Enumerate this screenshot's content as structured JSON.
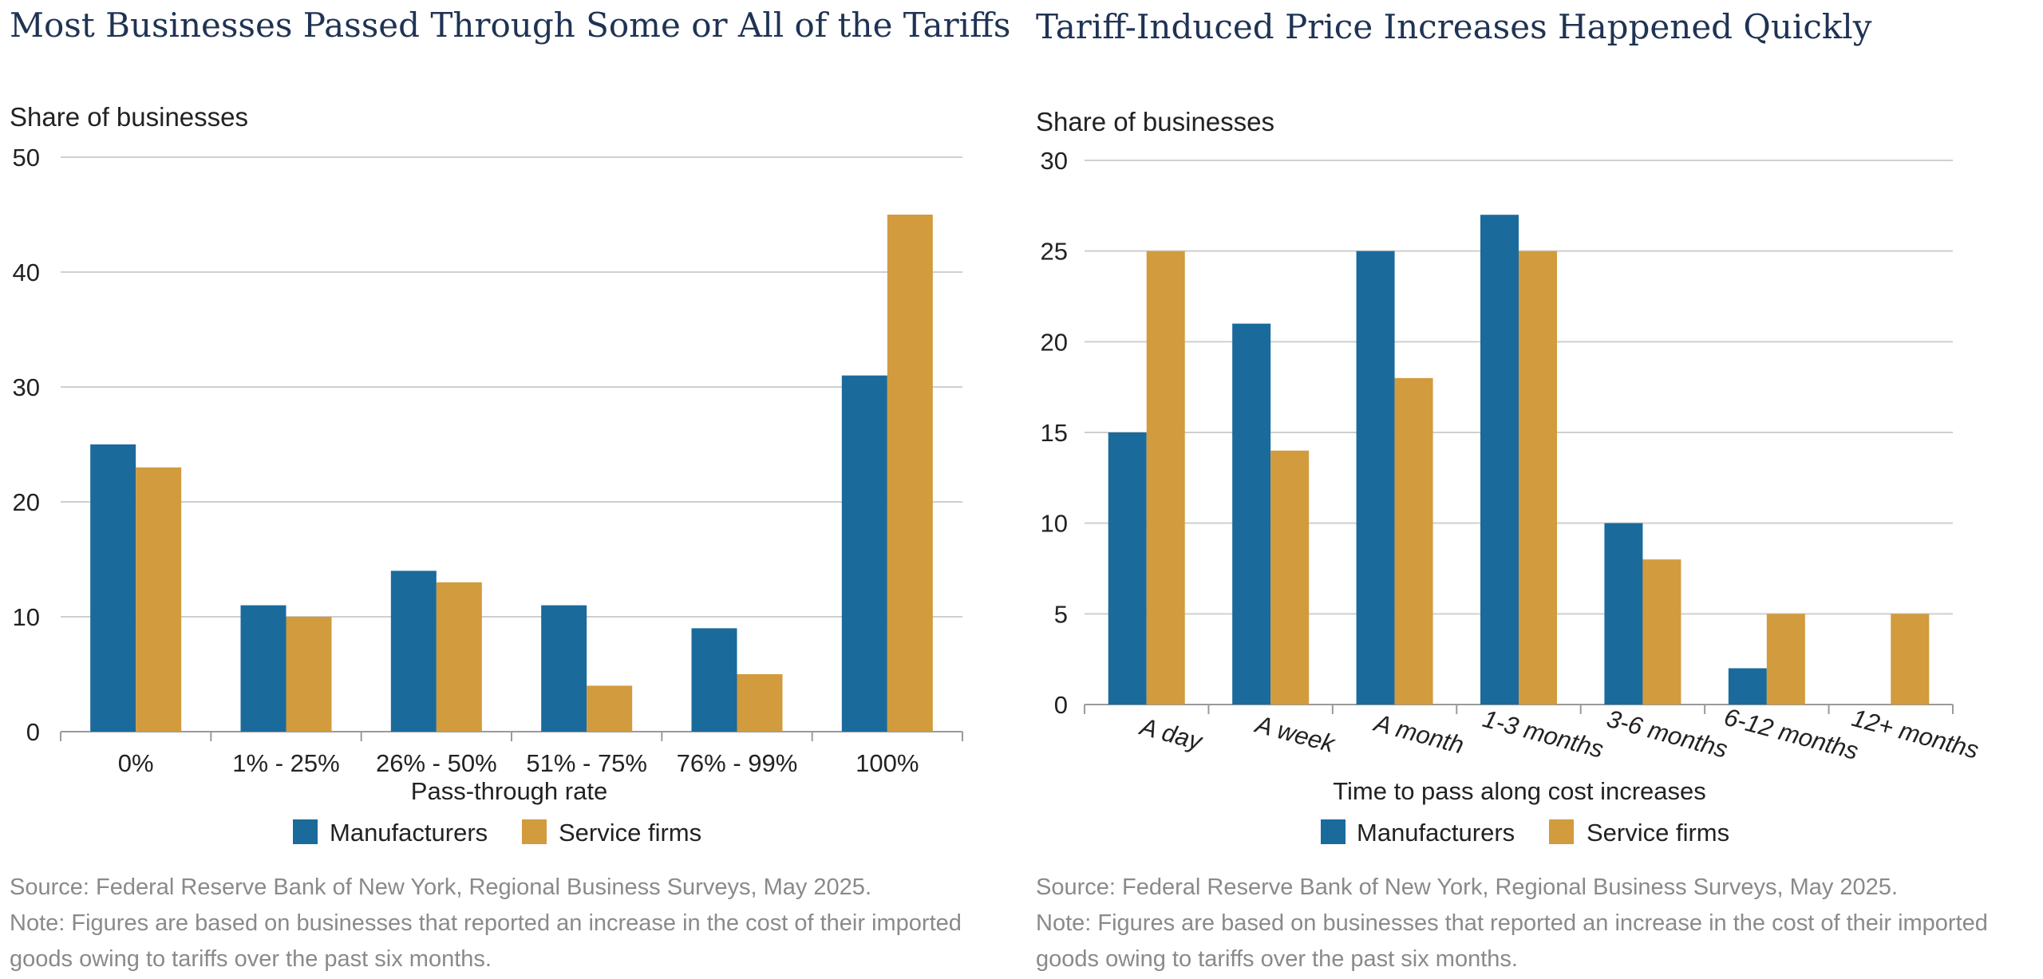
{
  "colors": {
    "manufacturers": "#1b6a9c",
    "service": "#d19b3e",
    "title": "#1f3354",
    "source": "#8a8a8a"
  },
  "chart_data": [
    {
      "type": "bar",
      "title": "Most Businesses Passed Through Some or All of the Tariffs",
      "ylabel": "Share of businesses",
      "xlabel": "Pass-through rate",
      "ylim": [
        0,
        50
      ],
      "yticks": [
        0,
        10,
        20,
        30,
        40,
        50
      ],
      "categories": [
        "0%",
        "1% - 25%",
        "26% - 50%",
        "51% - 75%",
        "76% - 99%",
        "100%"
      ],
      "series": [
        {
          "name": "Manufacturers",
          "values": [
            25,
            11,
            14,
            11,
            9,
            31
          ]
        },
        {
          "name": "Service firms",
          "values": [
            23,
            10,
            13,
            4,
            5,
            45
          ]
        }
      ],
      "grid": true,
      "legend": "bottom",
      "source": "Source: Federal Reserve Bank of New York, Regional Business Surveys, May 2025.",
      "note_line1": "Note: Figures are based on businesses that reported an increase in the cost of their imported",
      "note_line2": "goods owing to tariffs over the past six months."
    },
    {
      "type": "bar",
      "title": "Tariff-Induced Price Increases Happened Quickly",
      "ylabel": "Share of businesses",
      "xlabel": "Time to pass along cost increases",
      "ylim": [
        0,
        30
      ],
      "yticks": [
        0,
        5,
        10,
        15,
        20,
        25,
        30
      ],
      "categories": [
        "A day",
        "A week",
        "A month",
        "1-3 months",
        "3-6 months",
        "6-12 months",
        "12+ months"
      ],
      "series": [
        {
          "name": "Manufacturers",
          "values": [
            15,
            21,
            25,
            27,
            10,
            2,
            0
          ]
        },
        {
          "name": "Service firms",
          "values": [
            25,
            14,
            18,
            25,
            8,
            5,
            5
          ]
        }
      ],
      "grid": true,
      "legend": "bottom",
      "source": "Source: Federal Reserve Bank of New York, Regional Business Surveys, May 2025.",
      "note_line1": "Note: Figures are based on businesses that reported an increase in the cost of their imported",
      "note_line2": "goods owing to tariffs over the past six months."
    }
  ]
}
